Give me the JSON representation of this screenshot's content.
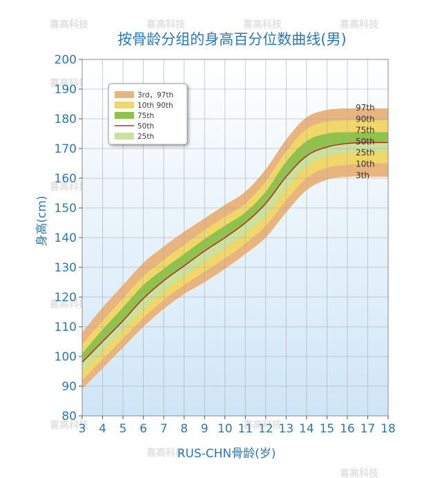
{
  "watermark": "喜高科技",
  "colors": {
    "band_3_97": "#e9b47e",
    "band_10_90": "#f1d76a",
    "band_25_75": "#8fc24a",
    "band_inner": "#c9e39c",
    "median": "#c0282d",
    "text": "#2a78b5",
    "grid": "#a9a9a9",
    "bg_top": "#ffffff",
    "bg_bottom": "#cfe6f7"
  },
  "chart_data": {
    "type": "line",
    "title": "按骨龄分组的身高百分位数曲线(男)",
    "xlabel": "RUS-CHN骨龄(岁)",
    "ylabel": "身高(cm)",
    "xlim": [
      3,
      18
    ],
    "ylim": [
      80,
      200
    ],
    "x_ticks": [
      3,
      4,
      5,
      6,
      7,
      8,
      9,
      10,
      11,
      12,
      13,
      14,
      15,
      16,
      17,
      18
    ],
    "y_ticks": [
      80,
      90,
      100,
      110,
      120,
      130,
      140,
      150,
      160,
      170,
      180,
      190,
      200
    ],
    "x": [
      3,
      4,
      5,
      6,
      7,
      8,
      9,
      10,
      11,
      12,
      13,
      14,
      15,
      16,
      17,
      18
    ],
    "series": [
      {
        "name": "97th",
        "values": [
          108,
          116.5,
          124,
          131.5,
          137,
          142,
          146.5,
          151,
          155.5,
          163,
          173,
          180.5,
          183,
          183.5,
          183.5,
          183.5
        ]
      },
      {
        "name": "90th",
        "values": [
          104,
          112,
          119.5,
          127,
          132.5,
          137.5,
          142.5,
          147,
          151.5,
          159,
          169,
          176.5,
          179,
          179.5,
          179.5,
          179.5
        ]
      },
      {
        "name": "75th",
        "values": [
          101,
          109,
          116.5,
          124,
          129.5,
          134.5,
          139.5,
          144,
          148.5,
          155.5,
          165.5,
          172.5,
          175,
          175.5,
          175.5,
          175.5
        ]
      },
      {
        "name": "50th",
        "values": [
          98,
          105,
          112,
          119.5,
          125.5,
          130.5,
          135.5,
          140,
          145,
          151.5,
          160.5,
          167.5,
          170.5,
          171.7,
          172,
          172
        ]
      },
      {
        "name": "25th",
        "values": [
          95,
          102,
          109,
          116,
          122,
          127,
          132,
          136.5,
          141.5,
          147.5,
          156.5,
          164,
          167.5,
          168.5,
          169,
          169
        ]
      },
      {
        "name": "10th",
        "values": [
          92,
          99,
          106,
          113,
          119,
          124,
          128.5,
          133,
          138,
          144,
          152.5,
          160,
          163.5,
          164.5,
          165,
          165
        ]
      },
      {
        "name": "3rd",
        "values": [
          89,
          96,
          103,
          110,
          116,
          121,
          125,
          129.5,
          134.5,
          140,
          148.5,
          156,
          159.5,
          160.5,
          160.5,
          160.5
        ]
      }
    ],
    "legend": [
      "3rd，97th",
      "10th  90th",
      "75th",
      "50th",
      "25th"
    ],
    "legend_position": "top-left",
    "end_labels": [
      "97th",
      "90th",
      "75th",
      "50th",
      "25th",
      "10th",
      "3th"
    ],
    "grid": true
  }
}
